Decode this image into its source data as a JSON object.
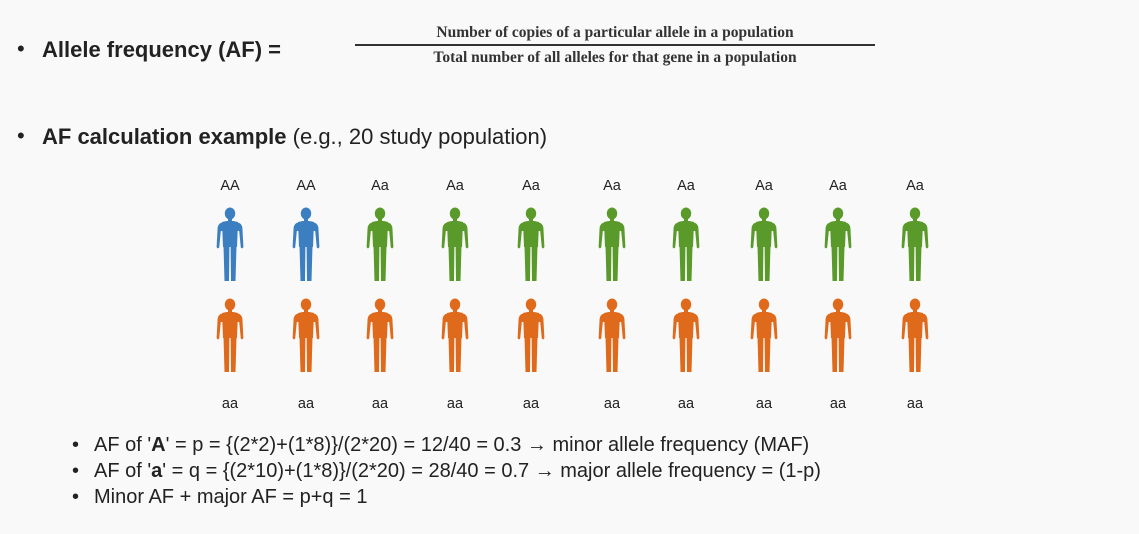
{
  "slide": {
    "bullet_char": "•",
    "af_definition": {
      "label": "Allele frequency (AF) =",
      "numerator": "Number of copies of a particular allele in a population",
      "denominator": "Total number of all alleles for that gene in a population"
    },
    "example": {
      "label_bold": "AF calculation example",
      "label_rest": " (e.g., 20 study population)"
    },
    "top_row": {
      "genotypes": [
        "AA",
        "AA",
        "Aa",
        "Aa",
        "Aa",
        "Aa",
        "Aa",
        "Aa",
        "Aa",
        "Aa"
      ],
      "colors": [
        "#3b7fc0",
        "#3b7fc0",
        "#5a9a2a",
        "#5a9a2a",
        "#5a9a2a",
        "#5a9a2a",
        "#5a9a2a",
        "#5a9a2a",
        "#5a9a2a",
        "#5a9a2a"
      ]
    },
    "bottom_row": {
      "genotypes": [
        "aa",
        "aa",
        "aa",
        "aa",
        "aa",
        "aa",
        "aa",
        "aa",
        "aa",
        "aa"
      ],
      "color": "#e06a1c"
    },
    "formulas": [
      {
        "pre": "AF of '",
        "bold": "A",
        "post": "' = p = {(2*2)+(1*8)}/(2*20) = 12/40 = 0.3 → minor allele frequency (MAF)"
      },
      {
        "pre": "AF of '",
        "bold": "a",
        "post": "' = q = {(2*10)+(1*8)}/(2*20) = 28/40 = 0.7 → major allele frequency = (1-p)"
      },
      {
        "pre": "Minor AF + major AF = p+q = 1",
        "bold": "",
        "post": ""
      }
    ]
  }
}
